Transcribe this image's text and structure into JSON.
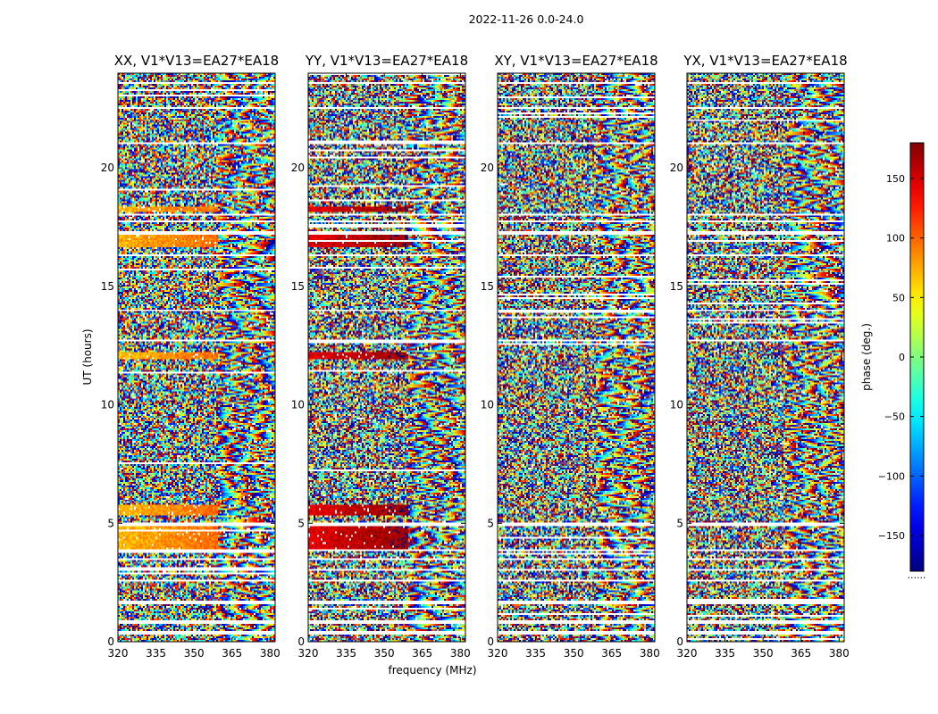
{
  "figure": {
    "suptitle": "2022-11-26 0.0-24.0",
    "xlabel": "frequency (MHz)",
    "ylabel": "UT (hours)",
    "colorbar_label": "phase (deg.)",
    "colorbar_note": "......"
  },
  "chart_data": {
    "type": "heatmap",
    "colormap": "jet",
    "zlim": [
      -180,
      180
    ],
    "colorbar_ticks": [
      150,
      100,
      50,
      0,
      -50,
      -100,
      -150
    ],
    "colorbar_tick_labels": [
      "150",
      "100",
      "50",
      "0",
      "−50",
      "−100",
      "−150"
    ],
    "xlim": [
      320,
      382
    ],
    "x_ticks": [
      320,
      335,
      350,
      365,
      380
    ],
    "x_tick_labels": [
      "320",
      "335",
      "350",
      "365",
      "380"
    ],
    "ylim": [
      0,
      24
    ],
    "y_ticks": [
      0,
      5,
      10,
      15,
      20
    ],
    "y_tick_labels": [
      "0",
      "5",
      "10",
      "15",
      "20"
    ],
    "panels": [
      {
        "title": "XX, V1*V13=EA27*EA18",
        "coherent_phase_deg": 70
      },
      {
        "title": "YY, V1*V13=EA27*EA18",
        "coherent_phase_deg": 145
      },
      {
        "title": "XY, V1*V13=EA27*EA18",
        "coherent_phase_deg": null
      },
      {
        "title": "YX, V1*V13=EA27*EA18",
        "coherent_phase_deg": null
      }
    ],
    "gaps_hours": [
      [
        0.3,
        0.45
      ],
      [
        0.78,
        0.88
      ],
      [
        1.55,
        1.62
      ],
      [
        1.68,
        1.75
      ],
      [
        2.55,
        2.62
      ],
      [
        3.0,
        3.08
      ],
      [
        3.42,
        3.5
      ],
      [
        3.8,
        3.9
      ],
      [
        4.9,
        5.0
      ],
      [
        12.65,
        12.72
      ],
      [
        13.92,
        14.0
      ],
      [
        16.25,
        16.35
      ],
      [
        17.15,
        17.3
      ],
      [
        17.7,
        17.78
      ],
      [
        18.0,
        18.08
      ],
      [
        21.0,
        21.06
      ],
      [
        22.5,
        22.56
      ],
      [
        23.55,
        23.62
      ]
    ],
    "coherent_bands_hours": [
      [
        3.85,
        4.85
      ],
      [
        5.35,
        5.75
      ],
      [
        11.95,
        12.25
      ],
      [
        16.65,
        17.15
      ],
      [
        18.15,
        18.4
      ]
    ]
  }
}
